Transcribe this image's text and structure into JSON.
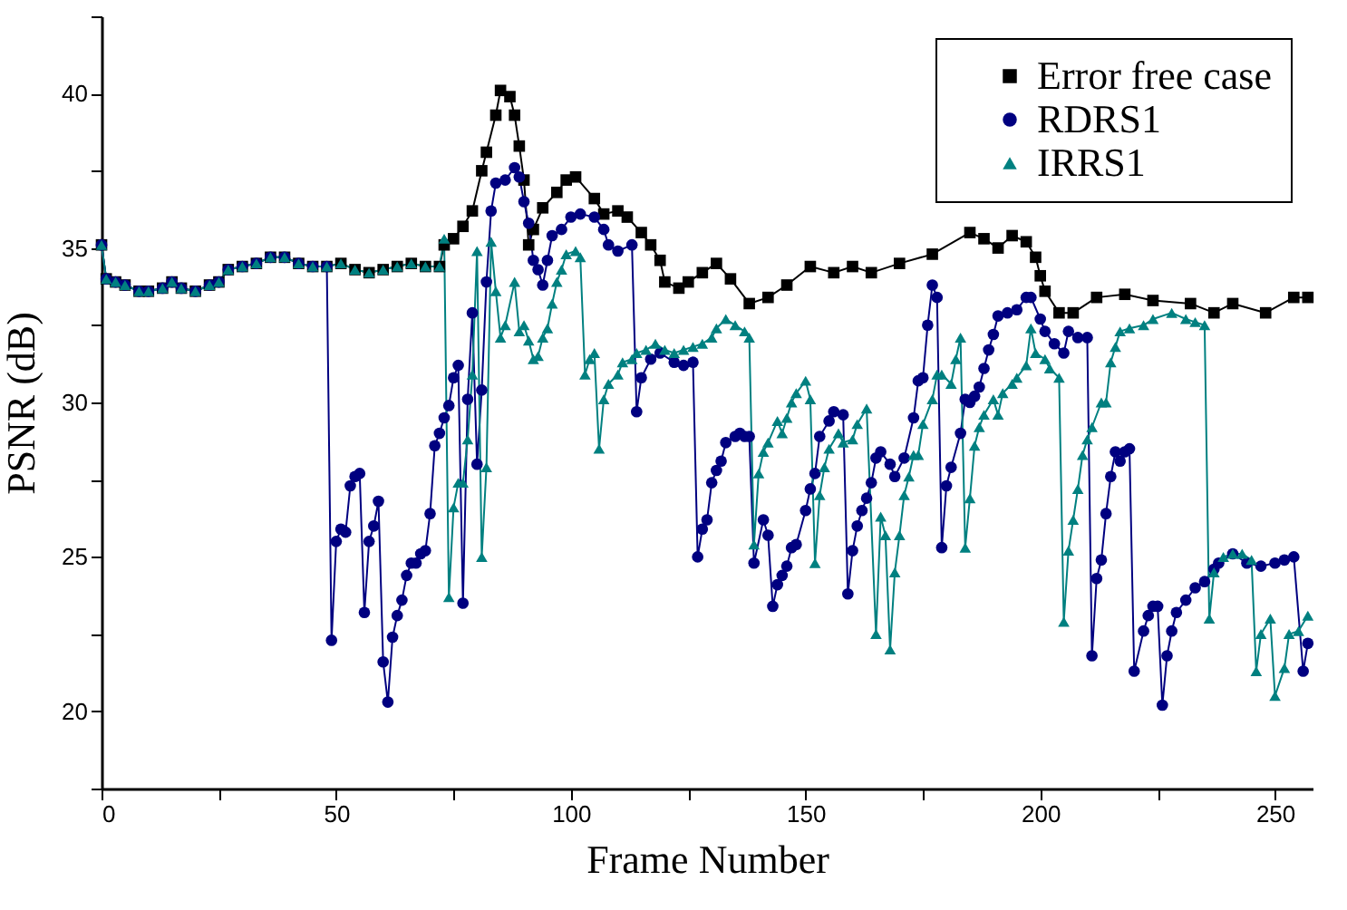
{
  "chart_data": {
    "type": "line",
    "xlabel": "Frame Number",
    "ylabel": "PSNR (dB)",
    "xlim": [
      0,
      258
    ],
    "xticks": [
      0,
      {
        "value": 25,
        "label": null
      },
      50,
      {
        "value": 75,
        "label": null
      },
      100,
      {
        "value": 125,
        "label": null
      },
      150,
      {
        "value": 175,
        "label": null
      },
      200,
      {
        "value": 225,
        "label": null
      },
      250
    ],
    "ylim": [
      17.5,
      42.5
    ],
    "yticks": [
      {
        "value": 17.5,
        "label": null
      },
      20,
      {
        "value": 22.5,
        "label": null
      },
      25,
      {
        "value": 27.5,
        "label": null
      },
      30,
      {
        "value": 32.5,
        "label": null
      },
      35,
      {
        "value": 37.5,
        "label": null
      },
      40,
      {
        "value": 42.5,
        "label": null
      }
    ],
    "grid": false,
    "legend": "top right",
    "line_style": "solid",
    "series": [
      {
        "name": "Error free case",
        "color": "#000000",
        "marker": "square",
        "x": [
          0,
          1,
          3,
          5,
          8,
          10,
          13,
          15,
          17,
          20,
          23,
          25,
          27,
          30,
          33,
          36,
          39,
          42,
          45,
          48,
          51,
          54,
          57,
          60,
          63,
          66,
          69,
          72,
          73,
          75,
          77,
          79,
          81,
          82,
          84,
          85,
          87,
          88,
          89,
          90,
          91,
          92,
          94,
          97,
          99,
          101,
          105,
          107,
          110,
          112,
          115,
          117,
          119,
          120,
          123,
          125,
          128,
          131,
          134,
          138,
          142,
          146,
          151,
          156,
          160,
          164,
          170,
          177,
          185,
          188,
          191,
          194,
          197,
          199,
          200,
          201,
          204,
          207,
          212,
          218,
          224,
          232,
          237,
          241,
          248,
          254,
          257
        ],
        "values": [
          35.1,
          34.0,
          33.9,
          33.8,
          33.6,
          33.6,
          33.7,
          33.9,
          33.7,
          33.6,
          33.8,
          33.9,
          34.3,
          34.4,
          34.5,
          34.7,
          34.7,
          34.5,
          34.4,
          34.4,
          34.5,
          34.3,
          34.2,
          34.3,
          34.4,
          34.5,
          34.4,
          34.4,
          35.1,
          35.3,
          35.7,
          36.2,
          37.5,
          38.1,
          39.3,
          40.1,
          39.9,
          39.3,
          38.3,
          37.2,
          35.1,
          35.6,
          36.3,
          36.8,
          37.2,
          37.3,
          36.6,
          36.1,
          36.2,
          36.0,
          35.5,
          35.1,
          34.6,
          33.9,
          33.7,
          33.9,
          34.2,
          34.5,
          34.0,
          33.2,
          33.4,
          33.8,
          34.4,
          34.2,
          34.4,
          34.2,
          34.5,
          34.8,
          35.5,
          35.3,
          35.0,
          35.4,
          35.2,
          34.7,
          34.1,
          33.6,
          32.9,
          32.9,
          33.4,
          33.5,
          33.3,
          33.2,
          32.9,
          33.2,
          32.9,
          33.4,
          33.4
        ]
      },
      {
        "name": "RDRS1",
        "color": "#000080",
        "marker": "circle",
        "x": [
          0,
          1,
          3,
          5,
          8,
          10,
          13,
          15,
          17,
          20,
          23,
          25,
          27,
          30,
          33,
          36,
          39,
          42,
          45,
          48,
          49,
          50,
          51,
          52,
          53,
          54,
          55,
          56,
          57,
          58,
          59,
          60,
          61,
          62,
          63,
          64,
          65,
          66,
          67,
          68,
          69,
          70,
          71,
          72,
          73,
          74,
          75,
          76,
          77,
          78,
          79,
          80,
          81,
          82,
          83,
          84,
          86,
          88,
          89,
          90,
          91,
          92,
          93,
          94,
          95,
          96,
          98,
          100,
          102,
          105,
          107,
          108,
          110,
          113,
          114,
          115,
          117,
          119,
          122,
          124,
          126,
          127,
          128,
          129,
          130,
          131,
          132,
          133,
          135,
          136,
          137,
          138,
          139,
          141,
          142,
          143,
          144,
          145,
          146,
          147,
          148,
          150,
          151,
          152,
          153,
          155,
          156,
          158,
          159,
          160,
          161,
          162,
          163,
          164,
          165,
          166,
          168,
          169,
          171,
          173,
          174,
          175,
          176,
          177,
          178,
          179,
          180,
          181,
          183,
          184,
          185,
          186,
          187,
          188,
          189,
          190,
          191,
          193,
          195,
          197,
          198,
          200,
          201,
          203,
          205,
          206,
          208,
          210,
          211,
          212,
          213,
          214,
          215,
          216,
          217,
          218,
          219,
          220,
          222,
          223,
          224,
          225,
          226,
          227,
          228,
          229,
          231,
          233,
          235,
          237,
          238,
          241,
          244,
          247,
          250,
          252,
          254,
          256,
          257
        ],
        "values": [
          35.1,
          34.0,
          33.9,
          33.8,
          33.6,
          33.6,
          33.7,
          33.9,
          33.7,
          33.6,
          33.8,
          33.9,
          34.3,
          34.4,
          34.5,
          34.7,
          34.7,
          34.5,
          34.4,
          34.4,
          22.3,
          25.5,
          25.9,
          25.8,
          27.3,
          27.6,
          27.7,
          23.2,
          25.5,
          26.0,
          26.8,
          21.6,
          20.3,
          22.4,
          23.1,
          23.6,
          24.4,
          24.8,
          24.8,
          25.1,
          25.2,
          26.4,
          28.6,
          29.0,
          29.5,
          29.9,
          30.8,
          31.2,
          23.5,
          30.1,
          32.9,
          28.0,
          30.4,
          33.9,
          36.2,
          37.1,
          37.2,
          37.6,
          37.3,
          36.5,
          35.8,
          34.6,
          34.3,
          33.8,
          34.6,
          35.4,
          35.6,
          36.0,
          36.1,
          36.0,
          35.6,
          35.1,
          34.9,
          35.1,
          29.7,
          30.8,
          31.4,
          31.6,
          31.3,
          31.2,
          31.3,
          25.0,
          25.9,
          26.2,
          27.4,
          27.8,
          28.1,
          28.7,
          28.9,
          29.0,
          28.9,
          28.9,
          24.8,
          26.2,
          25.7,
          23.4,
          24.1,
          24.4,
          24.7,
          25.3,
          25.4,
          26.5,
          27.2,
          27.7,
          28.9,
          29.4,
          29.7,
          29.6,
          23.8,
          25.2,
          26.0,
          26.5,
          26.9,
          27.4,
          28.2,
          28.4,
          28.0,
          27.6,
          28.2,
          29.5,
          30.7,
          30.8,
          32.5,
          33.8,
          33.4,
          25.3,
          27.3,
          27.9,
          29.0,
          30.1,
          30.0,
          30.2,
          30.5,
          31.1,
          31.7,
          32.2,
          32.8,
          32.9,
          33.0,
          33.4,
          33.4,
          32.7,
          32.3,
          31.9,
          31.6,
          32.3,
          32.1,
          32.1,
          21.8,
          24.3,
          24.9,
          26.4,
          27.6,
          28.4,
          28.1,
          28.4,
          28.5,
          21.3,
          22.6,
          23.1,
          23.4,
          23.4,
          20.2,
          21.8,
          22.6,
          23.2,
          23.6,
          24.0,
          24.2,
          24.6,
          24.8,
          25.1,
          24.8,
          24.7,
          24.8,
          24.9,
          25.0,
          21.3,
          22.2
        ]
      },
      {
        "name": "IRRS1",
        "color": "#008080",
        "marker": "triangle",
        "x": [
          0,
          1,
          3,
          5,
          8,
          10,
          13,
          15,
          17,
          20,
          23,
          25,
          27,
          30,
          33,
          36,
          39,
          42,
          45,
          48,
          51,
          54,
          57,
          60,
          63,
          66,
          69,
          72,
          73,
          74,
          75,
          76,
          77,
          78,
          79,
          80,
          81,
          82,
          83,
          84,
          85,
          86,
          88,
          89,
          90,
          91,
          92,
          93,
          94,
          95,
          96,
          97,
          98,
          99,
          101,
          102,
          103,
          104,
          105,
          106,
          107,
          108,
          110,
          111,
          113,
          114,
          116,
          118,
          120,
          122,
          124,
          126,
          128,
          130,
          131,
          133,
          135,
          137,
          138,
          139,
          140,
          141,
          142,
          144,
          145,
          146,
          147,
          148,
          150,
          151,
          152,
          153,
          154,
          155,
          157,
          158,
          160,
          161,
          163,
          165,
          166,
          167,
          168,
          169,
          170,
          171,
          172,
          173,
          174,
          175,
          177,
          178,
          179,
          181,
          182,
          183,
          184,
          185,
          186,
          187,
          188,
          190,
          191,
          192,
          194,
          195,
          197,
          198,
          199,
          201,
          202,
          204,
          205,
          206,
          207,
          208,
          209,
          210,
          211,
          213,
          214,
          215,
          216,
          217,
          219,
          222,
          224,
          228,
          231,
          233,
          235,
          236,
          237,
          239,
          241,
          243,
          245,
          246,
          247,
          249,
          250,
          252,
          253,
          255,
          257
        ],
        "values": [
          35.1,
          34.0,
          33.9,
          33.8,
          33.6,
          33.6,
          33.7,
          33.9,
          33.7,
          33.6,
          33.8,
          33.9,
          34.3,
          34.4,
          34.5,
          34.7,
          34.7,
          34.5,
          34.4,
          34.4,
          34.5,
          34.3,
          34.2,
          34.3,
          34.4,
          34.5,
          34.4,
          34.4,
          35.3,
          23.7,
          26.6,
          27.4,
          27.4,
          28.8,
          30.9,
          34.9,
          25.0,
          27.9,
          35.2,
          33.6,
          32.1,
          32.5,
          33.9,
          32.3,
          32.5,
          32.0,
          31.4,
          31.5,
          32.1,
          32.4,
          33.2,
          33.9,
          34.3,
          34.8,
          34.9,
          34.7,
          30.9,
          31.4,
          31.6,
          28.5,
          30.1,
          30.6,
          30.9,
          31.3,
          31.4,
          31.6,
          31.7,
          31.9,
          31.7,
          31.6,
          31.7,
          31.8,
          31.9,
          32.1,
          32.4,
          32.7,
          32.5,
          32.3,
          32.1,
          25.4,
          27.7,
          28.4,
          28.7,
          29.4,
          29.0,
          29.5,
          30.0,
          30.3,
          30.7,
          30.1,
          24.8,
          27.0,
          27.9,
          28.5,
          29.0,
          28.7,
          28.8,
          29.3,
          29.8,
          22.5,
          26.3,
          25.7,
          22.0,
          24.5,
          25.7,
          27.0,
          27.6,
          28.3,
          28.3,
          29.3,
          30.1,
          30.9,
          30.9,
          30.6,
          31.4,
          32.1,
          25.3,
          26.9,
          28.6,
          29.2,
          29.6,
          30.1,
          29.6,
          30.3,
          30.6,
          30.8,
          31.2,
          32.4,
          31.6,
          31.4,
          31.1,
          30.8,
          22.9,
          25.2,
          26.2,
          27.2,
          28.3,
          28.8,
          29.2,
          30.0,
          30.0,
          31.3,
          31.8,
          32.3,
          32.4,
          32.5,
          32.7,
          32.9,
          32.7,
          32.6,
          32.5,
          23.0,
          24.5,
          25.0,
          25.1,
          25.1,
          24.9,
          21.3,
          22.5,
          23.0,
          20.5,
          21.4,
          22.5,
          22.6,
          23.1
        ]
      }
    ]
  }
}
